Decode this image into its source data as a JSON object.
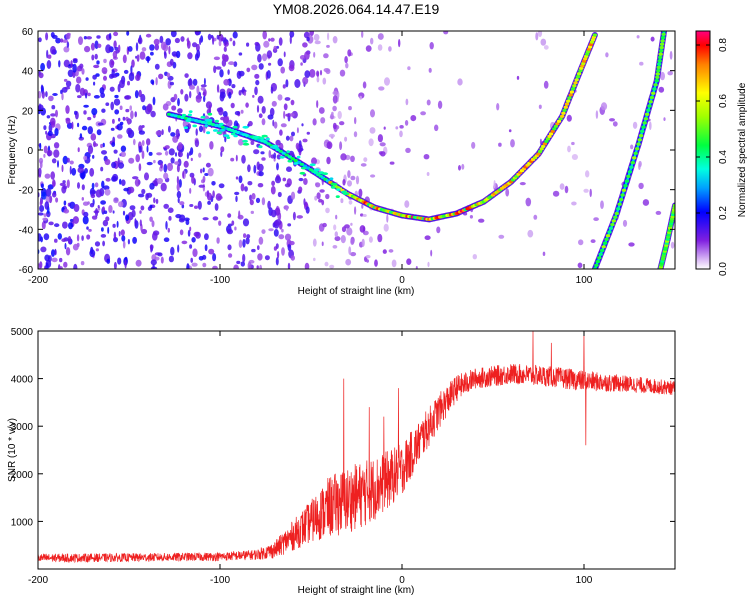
{
  "title": "YM08.2026.064.14.47.E19",
  "colors": {
    "snr_line": "#ee2020",
    "frame": "#000000",
    "background": "#ffffff"
  },
  "chart_data": [
    {
      "type": "heatmap",
      "xlabel": "Height of straight line (km)",
      "ylabel": "Frequency (Hz)",
      "xlim": [
        -200,
        150
      ],
      "ylim": [
        -60,
        60
      ],
      "x_ticks": [
        -200,
        -100,
        0,
        100
      ],
      "y_ticks": [
        -60,
        -40,
        -20,
        0,
        20,
        40,
        60
      ],
      "colorbar": {
        "label": "Normalized spectral amplitude",
        "range": [
          0.0,
          0.85
        ],
        "ticks": [
          0.0,
          0.2,
          0.4,
          0.6,
          0.8
        ],
        "colormap": "rainbow-purple-to-red"
      },
      "curves": [
        {
          "name": "main-echo",
          "points": [
            [
              -128,
              18
            ],
            [
              -100,
              12
            ],
            [
              -75,
              4
            ],
            [
              -50,
              -10
            ],
            [
              -30,
              -22
            ],
            [
              -15,
              -29
            ],
            [
              0,
              -33
            ],
            [
              15,
              -35
            ],
            [
              30,
              -32
            ],
            [
              45,
              -26
            ],
            [
              60,
              -16
            ],
            [
              75,
              -2
            ],
            [
              88,
              17
            ],
            [
              98,
              40
            ],
            [
              106,
              58
            ]
          ],
          "peak_amplitude": 0.85
        },
        {
          "name": "line-2",
          "points": [
            [
              106,
              -60
            ],
            [
              118,
              -32
            ],
            [
              130,
              3
            ],
            [
              140,
              35
            ],
            [
              144,
              60
            ]
          ],
          "peak_amplitude": 0.45
        },
        {
          "name": "line-3",
          "points": [
            [
              142,
              -60
            ],
            [
              146,
              -45
            ],
            [
              150,
              -28
            ]
          ],
          "peak_amplitude": 0.45
        }
      ],
      "noise_boundary_x": -50
    },
    {
      "type": "line",
      "xlabel": "Height of straight line (km)",
      "ylabel": "SNR (10 * v/v)",
      "xlim": [
        -200,
        150
      ],
      "ylim": [
        0,
        5000
      ],
      "x_ticks": [
        -200,
        -100,
        0,
        100
      ],
      "y_ticks": [
        1000,
        2000,
        3000,
        4000,
        5000
      ],
      "series": [
        {
          "envelope": {
            "x": [
              -200,
              -150,
              -100,
              -80,
              -70,
              -60,
              -50,
              -40,
              -30,
              -20,
              -10,
              0,
              10,
              20,
              30,
              40,
              60,
              80,
              100,
              120,
              150
            ],
            "mean": [
              230,
              240,
              260,
              300,
              400,
              700,
              1000,
              1300,
              1450,
              1600,
              1800,
              2100,
              2700,
              3300,
              3800,
              4000,
              4100,
              4050,
              3950,
              3900,
              3800
            ],
            "spread": [
              90,
              90,
              90,
              110,
              180,
              320,
              450,
              650,
              700,
              700,
              650,
              550,
              450,
              380,
              280,
              220,
              220,
              220,
              220,
              180,
              150
            ]
          },
          "spikes": [
            [
              -32,
              4000
            ],
            [
              -18,
              3400
            ],
            [
              -10,
              3200
            ],
            [
              -2,
              3800
            ],
            [
              72,
              5000
            ],
            [
              82,
              4750
            ],
            [
              100,
              5000
            ],
            [
              101,
              2600
            ]
          ]
        }
      ]
    }
  ]
}
